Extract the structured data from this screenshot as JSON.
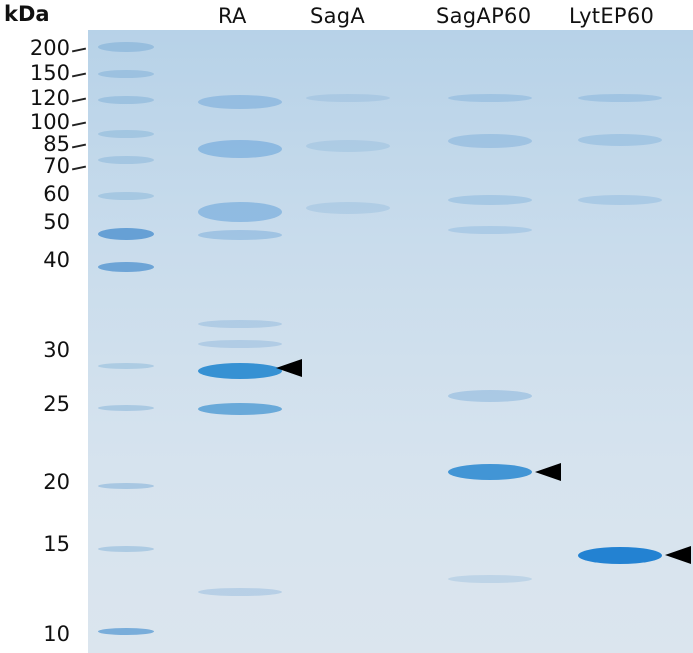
{
  "axis": {
    "unit": "kDa"
  },
  "markers": [
    {
      "label": "200",
      "tick": true
    },
    {
      "label": "150",
      "tick": true
    },
    {
      "label": "120",
      "tick": true
    },
    {
      "label": "100",
      "tick": true
    },
    {
      "label": "85",
      "tick": true
    },
    {
      "label": "70",
      "tick": true
    },
    {
      "label": "60",
      "tick": false
    },
    {
      "label": "50",
      "tick": false
    },
    {
      "label": "40",
      "tick": false
    },
    {
      "label": "30",
      "tick": false
    },
    {
      "label": "25",
      "tick": false
    },
    {
      "label": "20",
      "tick": false
    },
    {
      "label": "15",
      "tick": false
    },
    {
      "label": "10",
      "tick": false
    }
  ],
  "lanes": [
    {
      "label": "RA"
    },
    {
      "label": "SagA"
    },
    {
      "label": "SagAP60"
    },
    {
      "label": "LytEP60"
    }
  ],
  "colors": {
    "gel": "#c9dcec",
    "band": "#4a9fd8",
    "arrow": "#000000"
  }
}
